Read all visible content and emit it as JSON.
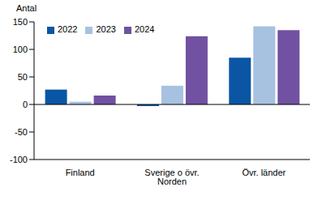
{
  "chart_data": {
    "type": "bar",
    "y_label": "Antal",
    "categories": [
      "Finland",
      "Sverige o övr. Norden",
      "Övr. länder"
    ],
    "series": [
      {
        "name": "2022",
        "color": "#0a56a4",
        "values": [
          27,
          -3,
          85
        ]
      },
      {
        "name": "2023",
        "color": "#a7c1e1",
        "values": [
          5,
          34,
          142
        ]
      },
      {
        "name": "2024",
        "color": "#7151a1",
        "values": [
          16,
          124,
          135
        ]
      }
    ],
    "ylim": [
      -100,
      150
    ],
    "yticks": [
      -100,
      -50,
      0,
      50,
      100,
      150
    ],
    "grid": false,
    "legend": "upper left"
  }
}
